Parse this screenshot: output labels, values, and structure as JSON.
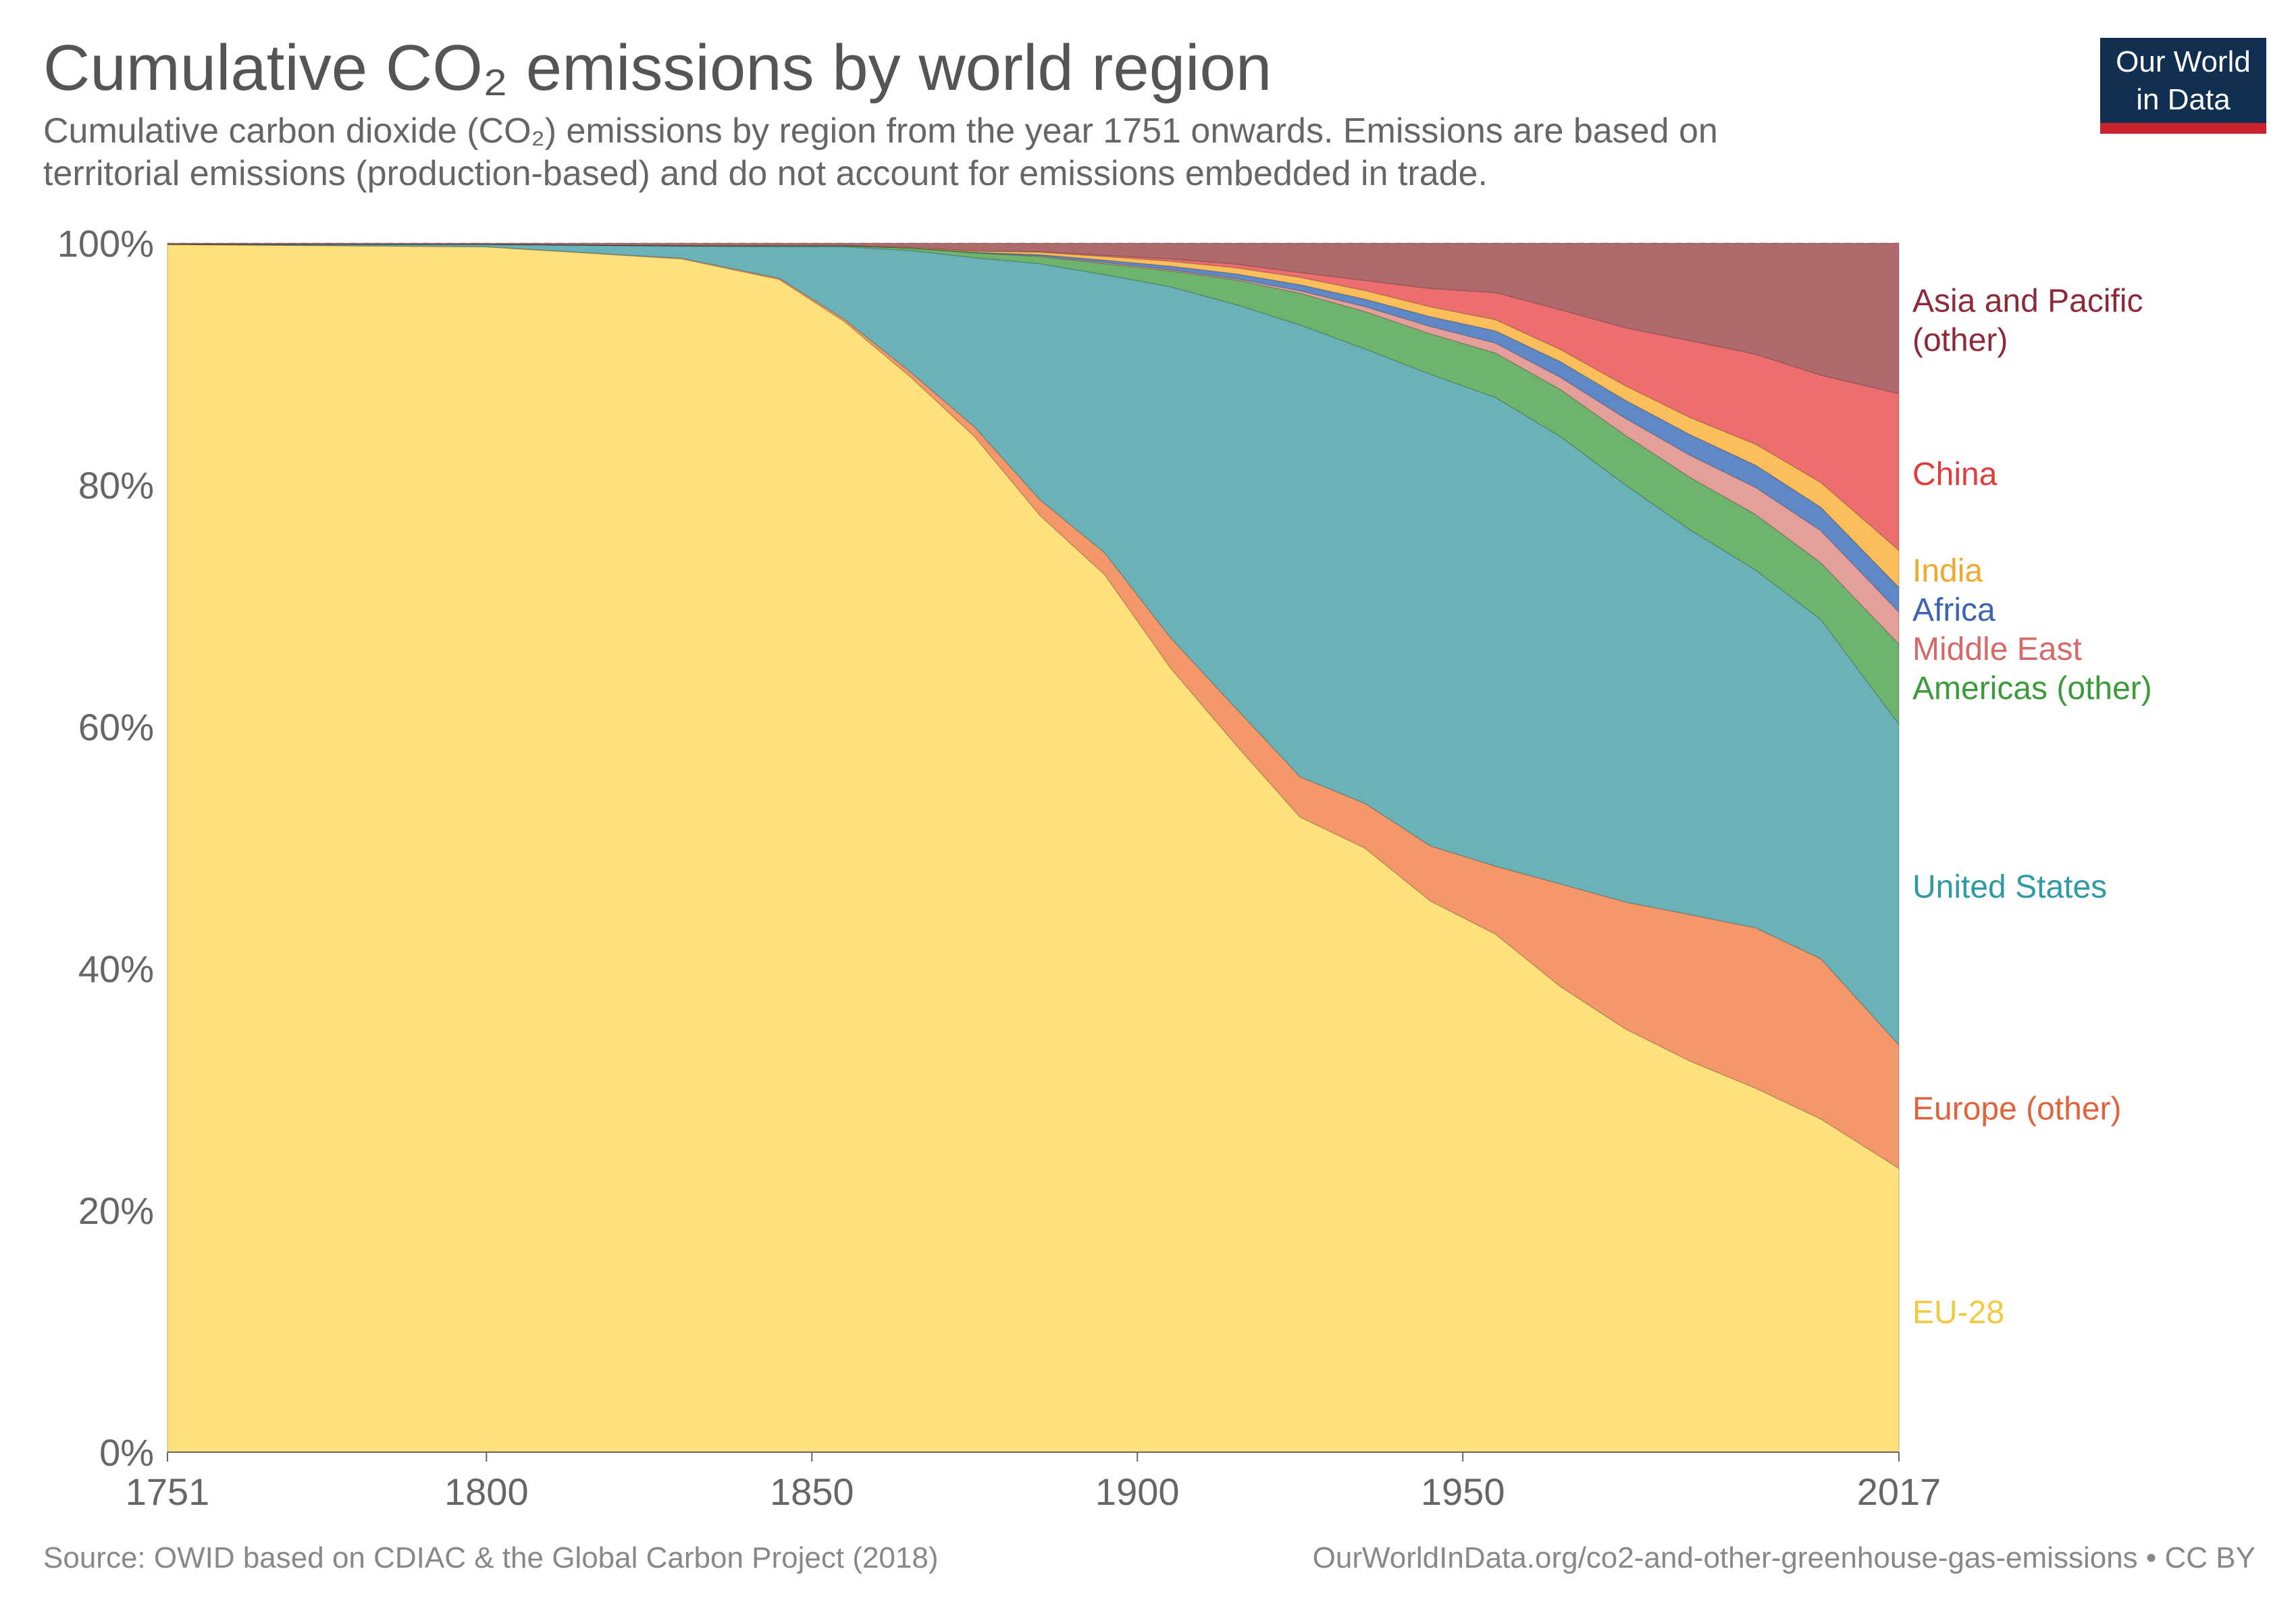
{
  "header": {
    "title": "Cumulative CO₂ emissions by world region",
    "subtitle_line1": "Cumulative carbon dioxide (CO₂) emissions by region from the year 1751 onwards. Emissions are based on",
    "subtitle_line2": "territorial emissions (production-based) and do not account for emissions embedded in trade."
  },
  "logo": {
    "line1": "Our World",
    "line2": "in Data",
    "bg_color": "#112f51",
    "accent_color": "#c9242d"
  },
  "footer": {
    "source": "Source: OWID based on CDIAC & the Global Carbon Project (2018)",
    "url": "OurWorldInData.org/co2-and-other-greenhouse-gas-emissions • CC BY"
  },
  "chart_data": {
    "type": "area",
    "stacked": true,
    "normalized": true,
    "xlim": [
      1751,
      2017
    ],
    "ylim": [
      0,
      100
    ],
    "x_ticks": [
      "1751",
      "1800",
      "1850",
      "1900",
      "1950",
      "2017"
    ],
    "y_ticks": [
      "0%",
      "20%",
      "40%",
      "60%",
      "80%",
      "100%"
    ],
    "grid": "horizontal dashed",
    "legend_placement": "right, inline labels",
    "x": [
      1751,
      1800,
      1830,
      1845,
      1855,
      1865,
      1875,
      1885,
      1895,
      1905,
      1915,
      1925,
      1935,
      1945,
      1955,
      1965,
      1975,
      1985,
      1995,
      2005,
      2017
    ],
    "series": [
      {
        "name": "EU-28",
        "label": "EU-28",
        "color": "#fee17b",
        "label_color": "#f5c842",
        "values": [
          99.9,
          99.7,
          98.7,
          97.0,
          93.5,
          89.0,
          84.0,
          77.5,
          72.5,
          65.0,
          58.0,
          52.0,
          48.5,
          45.0,
          42.0,
          38.5,
          35.0,
          32.0,
          29.5,
          27.0,
          23.0
        ]
      },
      {
        "name": "Europe (other)",
        "label": "Europe (other)",
        "color": "#f4986b",
        "label_color": "#e0633b",
        "values": [
          0.0,
          0.0,
          0.05,
          0.1,
          0.2,
          0.4,
          0.8,
          1.3,
          1.8,
          2.5,
          3.0,
          3.3,
          3.6,
          4.5,
          5.5,
          8.5,
          10.5,
          12.0,
          13.0,
          13.0,
          10.0
        ]
      },
      {
        "name": "United States",
        "label": "United States",
        "color": "#69b3b8",
        "label_color": "#2f9aa3",
        "values": [
          0.0,
          0.2,
          1.0,
          2.6,
          6.0,
          10.0,
          14.0,
          19.5,
          23.0,
          29.0,
          33.0,
          37.0,
          36.5,
          38.5,
          38.0,
          37.0,
          34.5,
          31.5,
          29.0,
          27.5,
          26.0
        ]
      },
      {
        "name": "Americas (other)",
        "label": "Americas (other)",
        "color": "#6fb46c",
        "label_color": "#3d9a3a",
        "values": [
          0.0,
          0.0,
          0.05,
          0.1,
          0.1,
          0.2,
          0.4,
          0.6,
          0.9,
          1.3,
          2.0,
          2.6,
          3.0,
          3.3,
          3.6,
          3.9,
          4.1,
          4.3,
          4.5,
          4.6,
          6.5
        ]
      },
      {
        "name": "Middle East",
        "label": "Middle East",
        "color": "#e59f9b",
        "label_color": "#d46a6a",
        "values": [
          0.0,
          0.0,
          0.0,
          0.0,
          0.0,
          0.0,
          0.0,
          0.05,
          0.1,
          0.1,
          0.1,
          0.2,
          0.4,
          0.6,
          0.8,
          1.0,
          1.4,
          1.8,
          2.2,
          2.6,
          2.6
        ]
      },
      {
        "name": "Africa",
        "label": "Africa",
        "color": "#5f88c7",
        "label_color": "#3b63b0",
        "values": [
          0.0,
          0.0,
          0.0,
          0.0,
          0.0,
          0.0,
          0.05,
          0.1,
          0.2,
          0.3,
          0.4,
          0.5,
          0.6,
          0.8,
          1.0,
          1.3,
          1.5,
          1.7,
          1.8,
          1.9,
          2.0
        ]
      },
      {
        "name": "India",
        "label": "India",
        "color": "#fcbe5a",
        "label_color": "#f0a830",
        "values": [
          0.0,
          0.0,
          0.0,
          0.0,
          0.0,
          0.05,
          0.1,
          0.2,
          0.3,
          0.4,
          0.5,
          0.6,
          0.7,
          0.8,
          0.9,
          1.0,
          1.2,
          1.4,
          1.7,
          2.0,
          3.0
        ]
      },
      {
        "name": "China",
        "label": "China",
        "color": "#ec6e6e",
        "label_color": "#e03c3c",
        "values": [
          0.0,
          0.0,
          0.0,
          0.0,
          0.0,
          0.0,
          0.0,
          0.05,
          0.1,
          0.2,
          0.3,
          0.4,
          0.8,
          1.5,
          2.2,
          3.3,
          4.8,
          6.3,
          7.3,
          8.7,
          12.7
        ]
      },
      {
        "name": "Asia and Pacific (other)",
        "label": "Asia and Pacific (other)",
        "color": "#b06a6e",
        "label_color": "#8d2a3a",
        "values": [
          0.1,
          0.1,
          0.2,
          0.2,
          0.2,
          0.35,
          0.65,
          0.7,
          1.0,
          1.3,
          1.7,
          2.4,
          3.0,
          3.7,
          4.0,
          5.5,
          7.0,
          8.0,
          9.0,
          10.7,
          12.2
        ]
      }
    ]
  }
}
